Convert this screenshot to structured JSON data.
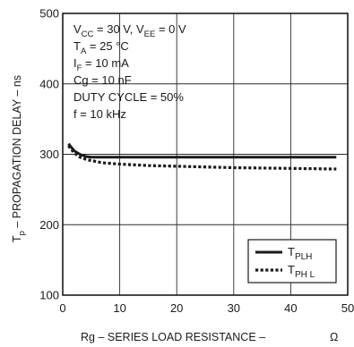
{
  "chart_data": {
    "type": "line",
    "xlabel": "Rg – SERIES LOAD RESISTANCE –",
    "xunit": "Ω",
    "ylabel": "T",
    "ylabel_sub": "p",
    "ylabel_rest": " – PROPAGATION DELAY – ns",
    "xlim": [
      0,
      50
    ],
    "ylim": [
      100,
      500
    ],
    "xticks": [
      0,
      10,
      20,
      30,
      40,
      50
    ],
    "yticks": [
      100,
      200,
      300,
      400,
      500
    ],
    "grid": true,
    "conditions": [
      [
        {
          "t": "V"
        },
        {
          "t": "CC",
          "sub": true
        },
        {
          "t": " = 30 V,  V"
        },
        {
          "t": "EE",
          "sub": true
        },
        {
          "t": " = 0  V"
        }
      ],
      [
        {
          "t": "T"
        },
        {
          "t": "A",
          "sub": true
        },
        {
          "t": " = 25 °C"
        }
      ],
      [
        {
          "t": "I"
        },
        {
          "t": "F",
          "sub": true
        },
        {
          "t": " = 10 mA"
        }
      ],
      [
        {
          "t": "Cg = 10 nF"
        }
      ],
      [
        {
          "t": "DUTY CYCLE = 50%"
        }
      ],
      [
        {
          "t": "f = 10 kHz"
        }
      ]
    ],
    "legend_position": "bottom-right",
    "series": [
      {
        "name": "T",
        "name_sub": "PLH",
        "style": "solid",
        "x": [
          1,
          2,
          3,
          4,
          5,
          7,
          10,
          15,
          20,
          30,
          40,
          48
        ],
        "y": [
          315,
          305,
          300,
          297,
          296,
          296,
          296,
          296,
          296,
          296,
          296,
          296
        ]
      },
      {
        "name": "T",
        "name_sub": "PH L",
        "style": "dotted",
        "x": [
          1,
          2,
          3,
          4,
          5,
          7,
          10,
          15,
          20,
          30,
          40,
          48
        ],
        "y": [
          312,
          302,
          296,
          293,
          291,
          288,
          286,
          284,
          283,
          281,
          280,
          279
        ]
      }
    ]
  }
}
